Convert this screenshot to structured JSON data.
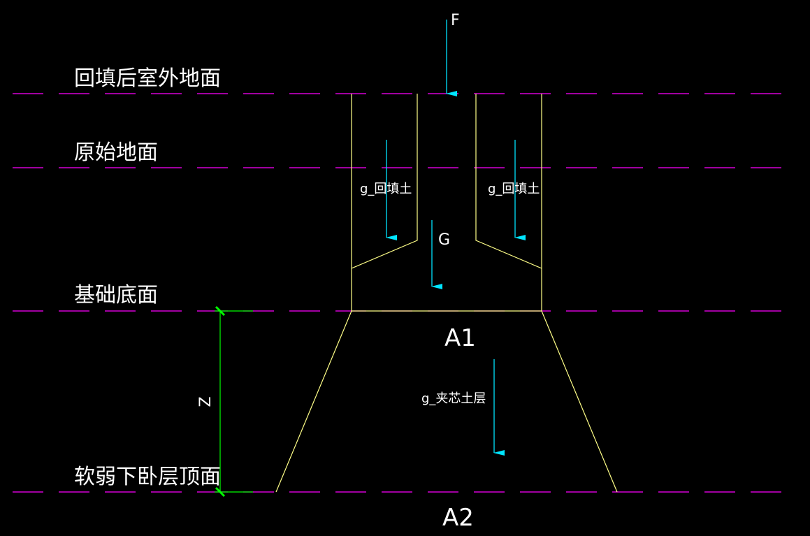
{
  "levels": {
    "backfilled_outdoor_ground": "回填后室外地面",
    "original_ground": "原始地面",
    "foundation_bottom": "基础底面",
    "weak_layer_top": "软弱下卧层顶面"
  },
  "loads": {
    "F": "F",
    "G": "G",
    "g_backfill_left": "g_回填土",
    "g_backfill_right": "g_回填土",
    "g_interlayer": "g_夹芯土层"
  },
  "areas": {
    "A1": "A1",
    "A2": "A2"
  },
  "dimension": {
    "z": "Z"
  },
  "colors": {
    "background": "#000000",
    "level_line": "#ff00ff",
    "foundation_outline": "#ffff88",
    "load_arrow": "#00e5ff",
    "dimension": "#00ff00",
    "text": "#ffffff"
  }
}
